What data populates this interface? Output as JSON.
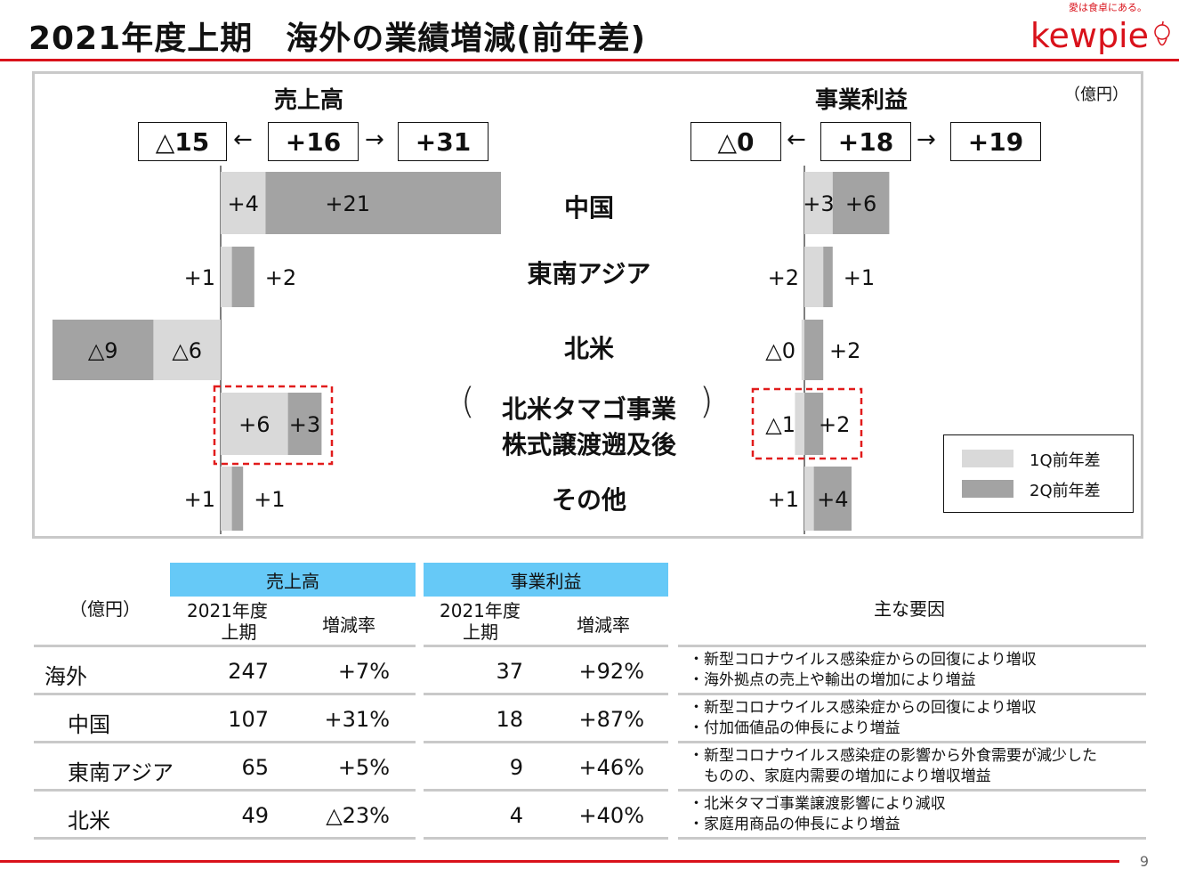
{
  "title": "2021年度上期　海外の業績増減(前年差)",
  "logo": {
    "text": "kewpie",
    "tagline": "愛は食卓にある。"
  },
  "page_number": "9",
  "chart": {
    "unit": "（億円）",
    "sales": {
      "title": "売上高",
      "left_box": "△15",
      "center_box": "+16",
      "right_box": "+31",
      "arrow_left": "←",
      "arrow_right": "→"
    },
    "profit": {
      "title": "事業利益",
      "left_box": "△0",
      "center_box": "+18",
      "right_box": "+19",
      "arrow_left": "←",
      "arrow_right": "→"
    },
    "categories": [
      "中国",
      "東南アジア",
      "北米",
      "北米タマゴ事業",
      "株式譲渡遡及後",
      "その他"
    ],
    "legend": [
      "1Q前年差",
      "2Q前年差"
    ],
    "colors": {
      "q1": "#d9d9d9",
      "q2": "#a3a3a3",
      "highlight": "#e11b1b"
    }
  },
  "chart_data": [
    {
      "type": "bar",
      "orientation": "horizontal",
      "stacked": true,
      "title": "売上高",
      "categories": [
        "中国",
        "東南アジア",
        "北米",
        "北米タマゴ事業 株式譲渡遡及後",
        "その他"
      ],
      "series": [
        {
          "name": "1Q前年差",
          "values": [
            4,
            1,
            -6,
            6,
            1
          ],
          "labels": [
            "+4",
            "+1",
            "△6",
            "+6",
            "+1"
          ]
        },
        {
          "name": "2Q前年差",
          "values": [
            21,
            2,
            -9,
            3,
            1
          ],
          "labels": [
            "+21",
            "+2",
            "△9",
            "+3",
            "+1"
          ]
        }
      ]
    },
    {
      "type": "bar",
      "orientation": "horizontal",
      "stacked": true,
      "title": "事業利益",
      "categories": [
        "中国",
        "東南アジア",
        "北米",
        "北米タマゴ事業 株式譲渡遡及後",
        "その他"
      ],
      "series": [
        {
          "name": "1Q前年差",
          "values": [
            3,
            2,
            -0.3,
            -1,
            1
          ],
          "labels": [
            "+3",
            "+2",
            "△0",
            "△1",
            "+1"
          ]
        },
        {
          "name": "2Q前年差",
          "values": [
            6,
            1,
            2,
            2,
            4
          ],
          "labels": [
            "+6",
            "+1",
            "+2",
            "+2",
            "+4"
          ]
        }
      ]
    }
  ],
  "table": {
    "unit": "（億円）",
    "sales_header": "売上高",
    "profit_header": "事業利益",
    "col_period": "2021年度 上期",
    "col_period_line1": "2021年度",
    "col_period_line2": "上期",
    "col_rate": "増減率",
    "reasons_header": "主な要因",
    "rows": [
      {
        "name": "海外",
        "sales": "247",
        "sales_rate": "+7%",
        "profit": "37",
        "profit_rate": "+92%",
        "reason1": "・新型コロナウイルス感染症からの回復により増収",
        "reason2": "・海外拠点の売上や輸出の増加により増益"
      },
      {
        "name": "中国",
        "sales": "107",
        "sales_rate": "+31%",
        "profit": "18",
        "profit_rate": "+87%",
        "reason1": "・新型コロナウイルス感染症からの回復により増収",
        "reason2": "・付加価値品の伸長により増益"
      },
      {
        "name": "東南アジア",
        "sales": "65",
        "sales_rate": "+5%",
        "profit": "9",
        "profit_rate": "+46%",
        "reason1": "・新型コロナウイルス感染症の影響から外食需要が減少した",
        "reason2": "　ものの、家庭内需要の増加により増収増益"
      },
      {
        "name": "北米",
        "sales": "49",
        "sales_rate": "△23%",
        "profit": "4",
        "profit_rate": "+40%",
        "reason1": "・北米タマゴ事業譲渡影響により減収",
        "reason2": "・家庭用商品の伸長により増益"
      }
    ]
  }
}
